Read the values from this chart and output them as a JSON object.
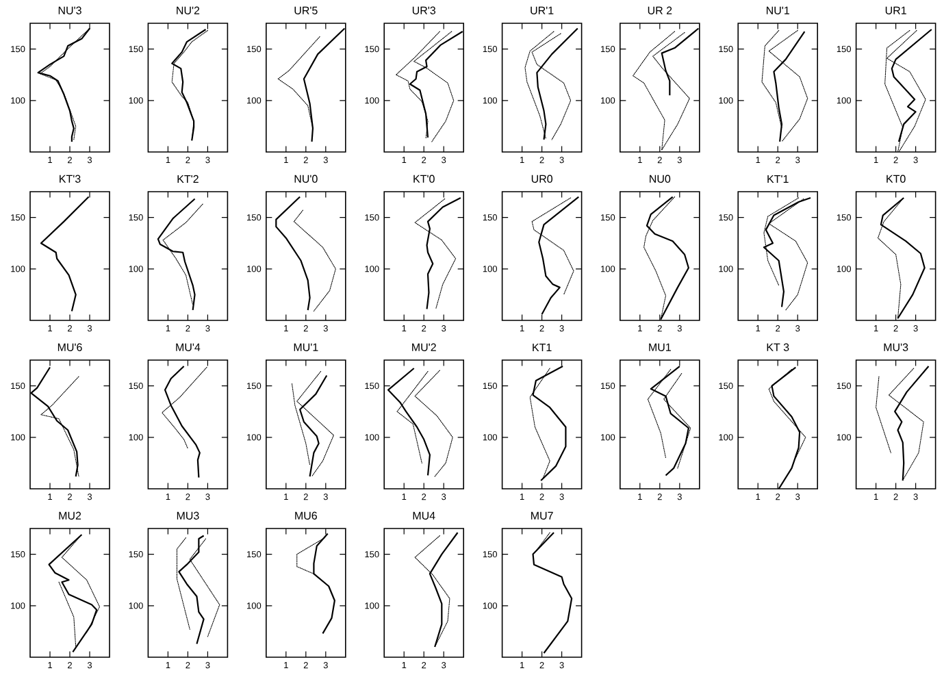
{
  "chart_data": [
    {
      "type": "line",
      "title": "NU'3",
      "xlim": [
        0,
        4
      ],
      "ylim": [
        50,
        175
      ],
      "xticks": [
        1,
        2,
        3
      ],
      "yticks": [
        100,
        150
      ],
      "series": [
        {
          "color": "#000000",
          "line_style": "solid",
          "x": [
            3.0,
            2.6,
            1.9,
            1.7,
            1.0,
            0.4,
            1.0,
            1.4,
            1.7,
            2.0,
            2.1,
            2.2,
            2.1,
            2.1
          ],
          "values": [
            170,
            160,
            153,
            143,
            135,
            127,
            124,
            119,
            106,
            90,
            80,
            73,
            65,
            60
          ]
        },
        {
          "color": "#000000",
          "line_style": "dotted",
          "x": [
            3.0,
            2.0,
            1.0,
            0.5,
            1.3,
            1.7,
            2.3,
            2.2
          ],
          "values": [
            170,
            152,
            133,
            126,
            120,
            107,
            75,
            62
          ]
        }
      ]
    },
    {
      "type": "line",
      "title": "NU'2",
      "xlim": [
        0,
        4
      ],
      "ylim": [
        50,
        175
      ],
      "xticks": [
        1,
        2,
        3
      ],
      "yticks": [
        100,
        150
      ],
      "series": [
        {
          "color": "#000000",
          "line_style": "solid",
          "x": [
            2.9,
            1.95,
            1.7,
            1.2,
            1.65,
            1.75,
            1.7,
            1.95,
            2.3,
            2.3,
            2.2
          ],
          "values": [
            169,
            157,
            147,
            136,
            131,
            118,
            108,
            98,
            80,
            74,
            61
          ]
        },
        {
          "color": "#000000",
          "line_style": "dotted",
          "x": [
            3.0,
            2.2,
            1.8,
            1.3,
            1.2,
            1.7,
            2.0,
            2.3,
            2.2
          ],
          "values": [
            168,
            157,
            147,
            136,
            118,
            104,
            98,
            80,
            61
          ]
        }
      ]
    },
    {
      "type": "line",
      "title": "UR'5",
      "xlim": [
        0,
        4
      ],
      "ylim": [
        50,
        175
      ],
      "xticks": [
        1,
        2,
        3
      ],
      "yticks": [
        100,
        150
      ],
      "series": [
        {
          "color": "#000000",
          "line_style": "solid",
          "x": [
            3.95,
            2.6,
            1.9,
            2.2,
            2.35,
            2.3
          ],
          "values": [
            170,
            145,
            121,
            97,
            73,
            60
          ]
        },
        {
          "color": "#000000",
          "line_style": "dotted",
          "x": [
            2.7,
            1.15,
            0.6,
            1.35,
            2.1,
            2.35
          ],
          "values": [
            162,
            129,
            121,
            111,
            95,
            73
          ]
        }
      ]
    },
    {
      "type": "line",
      "title": "UR'3",
      "xlim": [
        0,
        4
      ],
      "ylim": [
        50,
        175
      ],
      "xticks": [
        1,
        2,
        3
      ],
      "yticks": [
        100,
        150
      ],
      "series": [
        {
          "color": "#000000",
          "line_style": "solid",
          "x": [
            3.95,
            2.85,
            2.1,
            2.15,
            1.65,
            1.6,
            1.3,
            1.8,
            2.1,
            2.2
          ],
          "values": [
            167,
            154,
            139,
            133,
            128,
            121,
            116,
            110,
            87,
            64
          ]
        },
        {
          "color": "#000000",
          "line_style": "dotted",
          "x": [
            2.8,
            1.55,
            0.6,
            1.2,
            1.3,
            1.9,
            2.2,
            2.1
          ],
          "values": [
            167,
            142,
            125,
            119,
            111,
            99,
            80,
            63
          ]
        },
        {
          "color": "#000000",
          "line_style": "dotted",
          "x": [
            3.4,
            1.5,
            2.1,
            3.2,
            3.5,
            3.1,
            2.4
          ],
          "values": [
            167,
            138,
            132,
            117,
            100,
            80,
            60
          ]
        }
      ]
    },
    {
      "type": "line",
      "title": "UR'1",
      "xlim": [
        0,
        4
      ],
      "ylim": [
        50,
        175
      ],
      "xticks": [
        1,
        2,
        3
      ],
      "yticks": [
        100,
        150
      ],
      "series": [
        {
          "color": "#000000",
          "line_style": "solid",
          "x": [
            3.8,
            2.5,
            1.75,
            1.8,
            2.1,
            2.2,
            2.1
          ],
          "values": [
            170,
            145,
            127,
            113,
            90,
            77,
            62
          ]
        },
        {
          "color": "#000000",
          "line_style": "dotted",
          "x": [
            2.95,
            1.5,
            1.75,
            3.1,
            3.45,
            2.95,
            2.5
          ],
          "values": [
            165,
            147,
            135,
            117,
            100,
            77,
            62
          ]
        },
        {
          "color": "#000000",
          "line_style": "dotted",
          "x": [
            2.6,
            1.4,
            1.15,
            1.25,
            1.9,
            2.2
          ],
          "values": [
            167,
            148,
            132,
            118,
            85,
            63
          ]
        }
      ]
    },
    {
      "type": "line",
      "title": "UR 2",
      "xlim": [
        0,
        4
      ],
      "ylim": [
        50,
        175
      ],
      "xticks": [
        1,
        2,
        3
      ],
      "yticks": [
        100,
        150
      ],
      "series": [
        {
          "color": "#000000",
          "line_style": "solid",
          "x": [
            3.95,
            2.75,
            2.1,
            2.3,
            2.5,
            2.5
          ],
          "values": [
            170,
            151,
            146,
            129,
            119,
            105
          ]
        },
        {
          "color": "#000000",
          "line_style": "dotted",
          "x": [
            3.25,
            1.65,
            2.1,
            3.5,
            2.9,
            2.1
          ],
          "values": [
            166,
            143,
            132,
            102,
            77,
            52
          ]
        },
        {
          "color": "#000000",
          "line_style": "dotted",
          "x": [
            2.75,
            1.5,
            0.65,
            1.2,
            2.25,
            2.1
          ],
          "values": [
            167,
            147,
            124,
            117,
            81,
            52
          ]
        }
      ]
    },
    {
      "type": "line",
      "title": "NU'1",
      "xlim": [
        0,
        4
      ],
      "ylim": [
        50,
        175
      ],
      "xticks": [
        1,
        2,
        3
      ],
      "yticks": [
        100,
        150
      ],
      "series": [
        {
          "color": "#000000",
          "line_style": "solid",
          "x": [
            3.35,
            2.4,
            1.8,
            1.9,
            2.05,
            2.2,
            2.1
          ],
          "values": [
            167,
            140,
            128,
            117,
            93,
            77,
            60
          ]
        },
        {
          "color": "#000000",
          "line_style": "dotted",
          "x": [
            3.0,
            1.55,
            3.1,
            3.5,
            3.1,
            2.2
          ],
          "values": [
            168,
            148,
            123,
            102,
            82,
            60
          ]
        },
        {
          "color": "#000000",
          "line_style": "dotted",
          "x": [
            2.05,
            1.35,
            1.2,
            1.9,
            2.2
          ],
          "values": [
            168,
            153,
            118,
            98,
            73
          ]
        }
      ]
    },
    {
      "type": "line",
      "title": "UR1",
      "xlim": [
        0,
        4
      ],
      "ylim": [
        50,
        175
      ],
      "xticks": [
        1,
        2,
        3
      ],
      "yticks": [
        100,
        150
      ],
      "series": [
        {
          "color": "#000000",
          "line_style": "solid",
          "x": [
            3.8,
            2.0,
            1.8,
            1.9,
            2.95,
            2.6,
            3.0,
            2.4,
            2.15
          ],
          "values": [
            169,
            140,
            131,
            123,
            101,
            94,
            89,
            77,
            60
          ]
        },
        {
          "color": "#000000",
          "line_style": "dotted",
          "x": [
            3.05,
            1.55,
            2.7,
            3.5,
            2.95,
            2.15
          ],
          "values": [
            168,
            141,
            128,
            101,
            75,
            50
          ]
        },
        {
          "color": "#000000",
          "line_style": "dotted",
          "x": [
            2.7,
            1.55,
            1.45,
            2.35,
            2.1
          ],
          "values": [
            168,
            151,
            116,
            74,
            50
          ]
        }
      ]
    },
    {
      "type": "line",
      "title": "KT'3",
      "xlim": [
        0,
        4
      ],
      "ylim": [
        50,
        175
      ],
      "xticks": [
        1,
        2,
        3
      ],
      "yticks": [
        100,
        150
      ],
      "series": [
        {
          "color": "#000000",
          "line_style": "solid",
          "x": [
            2.95,
            1.7,
            0.55,
            1.3,
            1.35,
            1.95,
            2.3,
            2.1
          ],
          "values": [
            170,
            146,
            125,
            116,
            110,
            94,
            75,
            59
          ]
        }
      ]
    },
    {
      "type": "line",
      "title": "KT'2",
      "xlim": [
        0,
        4
      ],
      "ylim": [
        50,
        175
      ],
      "xticks": [
        1,
        2,
        3
      ],
      "yticks": [
        100,
        150
      ],
      "series": [
        {
          "color": "#000000",
          "line_style": "solid",
          "x": [
            2.35,
            1.25,
            0.5,
            0.6,
            1.25,
            1.75,
            1.85,
            2.25,
            2.35,
            2.25
          ],
          "values": [
            168,
            149,
            129,
            124,
            117,
            116,
            107,
            84,
            75,
            60
          ]
        },
        {
          "color": "#000000",
          "line_style": "dotted",
          "x": [
            2.75,
            1.9,
            0.75,
            1.4,
            1.9,
            2.25
          ],
          "values": [
            163,
            145,
            128,
            110,
            94,
            65
          ]
        }
      ]
    },
    {
      "type": "line",
      "title": "NU'0",
      "xlim": [
        0,
        4
      ],
      "ylim": [
        50,
        175
      ],
      "xticks": [
        1,
        2,
        3
      ],
      "yticks": [
        100,
        150
      ],
      "series": [
        {
          "color": "#000000",
          "line_style": "solid",
          "x": [
            1.7,
            0.5,
            0.5,
            1.0,
            1.75,
            2.1,
            2.2,
            2.1
          ],
          "values": [
            170,
            148,
            141,
            130,
            108,
            89,
            72,
            60
          ]
        },
        {
          "color": "#000000",
          "line_style": "dotted",
          "x": [
            1.85,
            1.4,
            2.85,
            3.5,
            3.2,
            2.4
          ],
          "values": [
            157,
            146,
            121,
            100,
            79,
            59
          ]
        }
      ]
    },
    {
      "type": "line",
      "title": "KT'0",
      "xlim": [
        0,
        4
      ],
      "ylim": [
        50,
        175
      ],
      "xticks": [
        1,
        2,
        3
      ],
      "yticks": [
        100,
        150
      ],
      "series": [
        {
          "color": "#000000",
          "line_style": "solid",
          "x": [
            3.85,
            2.95,
            2.2,
            2.3,
            2.15,
            2.2,
            2.45,
            2.2,
            2.25,
            2.15
          ],
          "values": [
            169,
            160,
            146,
            139,
            123,
            116,
            105,
            95,
            77,
            61
          ]
        },
        {
          "color": "#000000",
          "line_style": "dotted",
          "x": [
            3.05,
            1.55,
            2.9,
            3.6,
            2.95,
            2.6
          ],
          "values": [
            168,
            145,
            128,
            110,
            85,
            61
          ]
        }
      ]
    },
    {
      "type": "line",
      "title": "UR0",
      "xlim": [
        0,
        4
      ],
      "ylim": [
        50,
        175
      ],
      "xticks": [
        1,
        2,
        3
      ],
      "yticks": [
        100,
        150
      ],
      "series": [
        {
          "color": "#000000",
          "line_style": "solid",
          "x": [
            3.85,
            2.1,
            1.85,
            2.05,
            2.2,
            2.55,
            2.9,
            2.45,
            2.0
          ],
          "values": [
            170,
            143,
            126,
            110,
            93,
            85,
            82,
            72,
            56
          ]
        },
        {
          "color": "#000000",
          "line_style": "dotted",
          "x": [
            3.45,
            1.5,
            1.6,
            3.1,
            3.6,
            3.1
          ],
          "values": [
            169,
            146,
            138,
            118,
            98,
            75
          ]
        }
      ]
    },
    {
      "type": "line",
      "title": "NU0",
      "xlim": [
        0,
        4
      ],
      "ylim": [
        50,
        175
      ],
      "xticks": [
        1,
        2,
        3
      ],
      "yticks": [
        100,
        150
      ],
      "series": [
        {
          "color": "#000000",
          "line_style": "solid",
          "x": [
            2.65,
            1.55,
            1.35,
            1.75,
            2.65,
            3.25,
            3.45,
            2.9,
            2.05
          ],
          "values": [
            170,
            153,
            142,
            134,
            127,
            114,
            101,
            82,
            51
          ]
        },
        {
          "color": "#000000",
          "line_style": "dotted",
          "x": [
            2.75,
            1.65,
            1.3,
            1.2,
            1.8,
            2.3,
            2.05
          ],
          "values": [
            170,
            147,
            132,
            121,
            98,
            74,
            51
          ]
        }
      ]
    },
    {
      "type": "line",
      "title": "KT'1",
      "xlim": [
        0,
        4
      ],
      "ylim": [
        50,
        175
      ],
      "xticks": [
        1,
        2,
        3
      ],
      "yticks": [
        100,
        150
      ],
      "series": [
        {
          "color": "#000000",
          "line_style": "solid",
          "x": [
            3.65,
            3.05,
            1.8,
            1.4,
            1.75,
            1.3,
            2.05,
            2.3,
            2.2
          ],
          "values": [
            169,
            165,
            152,
            138,
            125,
            121,
            108,
            78,
            63
          ]
        },
        {
          "color": "#000000",
          "line_style": "dotted",
          "x": [
            3.3,
            1.55,
            2.9,
            3.5,
            3.0,
            2.4
          ],
          "values": [
            168,
            144,
            127,
            106,
            75,
            60
          ]
        },
        {
          "color": "#000000",
          "line_style": "dotted",
          "x": [
            3.05,
            1.5,
            1.3,
            1.5,
            2.05
          ],
          "values": [
            169,
            151,
            135,
            108,
            84
          ]
        }
      ]
    },
    {
      "type": "line",
      "title": "KT0",
      "xlim": [
        0,
        4
      ],
      "ylim": [
        50,
        175
      ],
      "xticks": [
        1,
        2,
        3
      ],
      "yticks": [
        100,
        150
      ],
      "series": [
        {
          "color": "#000000",
          "line_style": "solid",
          "x": [
            2.4,
            1.35,
            1.25,
            2.5,
            3.25,
            3.45,
            2.85,
            2.1
          ],
          "values": [
            169,
            152,
            143,
            127,
            115,
            101,
            75,
            52
          ]
        },
        {
          "color": "#000000",
          "line_style": "dotted",
          "x": [
            2.35,
            1.4,
            1.1,
            2.0,
            2.25,
            2.1
          ],
          "values": [
            168,
            146,
            130,
            114,
            85,
            52
          ]
        }
      ]
    },
    {
      "type": "line",
      "title": "MU'6",
      "xlim": [
        0,
        4
      ],
      "ylim": [
        50,
        175
      ],
      "xticks": [
        1,
        2,
        3
      ],
      "yticks": [
        100,
        150
      ],
      "series": [
        {
          "color": "#000000",
          "line_style": "solid",
          "x": [
            1.0,
            0.35,
            0.05,
            0.9,
            1.35,
            1.9,
            2.35,
            2.4,
            2.3
          ],
          "values": [
            168,
            148,
            143,
            130,
            116,
            107,
            86,
            73,
            62
          ]
        },
        {
          "color": "#000000",
          "line_style": "dotted",
          "x": [
            2.45,
            1.1,
            0.55,
            1.45,
            2.2,
            2.45
          ],
          "values": [
            159,
            131,
            122,
            118,
            88,
            62
          ]
        }
      ]
    },
    {
      "type": "line",
      "title": "MU'4",
      "xlim": [
        0,
        4
      ],
      "ylim": [
        50,
        175
      ],
      "xticks": [
        1,
        2,
        3
      ],
      "yticks": [
        100,
        150
      ],
      "series": [
        {
          "color": "#000000",
          "line_style": "solid",
          "x": [
            1.8,
            1.15,
            0.85,
            1.15,
            1.7,
            2.4,
            2.6,
            2.5,
            2.55
          ],
          "values": [
            169,
            157,
            146,
            131,
            111,
            93,
            85,
            78,
            61
          ]
        },
        {
          "color": "#000000",
          "line_style": "dotted",
          "x": [
            2.95,
            1.6,
            0.7,
            1.35,
            1.8,
            2.0
          ],
          "values": [
            168,
            139,
            124,
            109,
            98,
            89
          ]
        }
      ]
    },
    {
      "type": "line",
      "title": "MU'1",
      "xlim": [
        0,
        4
      ],
      "ylim": [
        50,
        175
      ],
      "xticks": [
        1,
        2,
        3
      ],
      "yticks": [
        100,
        150
      ],
      "series": [
        {
          "color": "#000000",
          "line_style": "solid",
          "x": [
            3.05,
            2.5,
            1.7,
            1.9,
            2.55,
            2.65,
            2.4,
            2.2
          ],
          "values": [
            160,
            142,
            127,
            115,
            101,
            94,
            85,
            62
          ]
        },
        {
          "color": "#000000",
          "line_style": "dotted",
          "x": [
            2.75,
            1.55,
            3.4,
            2.85,
            2.3
          ],
          "values": [
            164,
            135,
            102,
            77,
            62
          ]
        },
        {
          "color": "#000000",
          "line_style": "dotted",
          "x": [
            1.3,
            1.45,
            2.0,
            2.2
          ],
          "values": [
            152,
            131,
            94,
            73
          ]
        }
      ]
    },
    {
      "type": "line",
      "title": "MU'2",
      "xlim": [
        0,
        4
      ],
      "ylim": [
        50,
        175
      ],
      "xticks": [
        1,
        2,
        3
      ],
      "yticks": [
        100,
        150
      ],
      "series": [
        {
          "color": "#000000",
          "line_style": "solid",
          "x": [
            1.5,
            0.2,
            0.8,
            1.1,
            1.65,
            2.0,
            2.3,
            2.2
          ],
          "values": [
            167,
            146,
            134,
            125,
            110,
            98,
            83,
            63
          ]
        },
        {
          "color": "#000000",
          "line_style": "dotted",
          "x": [
            2.8,
            1.55,
            2.65,
            3.45,
            3.1,
            2.55
          ],
          "values": [
            165,
            140,
            121,
            100,
            75,
            62
          ]
        },
        {
          "color": "#000000",
          "line_style": "dotted",
          "x": [
            2.2,
            0.65,
            1.45,
            1.9
          ],
          "values": [
            164,
            125,
            113,
            75
          ]
        }
      ]
    },
    {
      "type": "line",
      "title": "KT1",
      "xlim": [
        0,
        4
      ],
      "ylim": [
        50,
        175
      ],
      "xticks": [
        1,
        2,
        3
      ],
      "yticks": [
        100,
        150
      ],
      "series": [
        {
          "color": "#000000",
          "line_style": "solid",
          "x": [
            3.05,
            1.7,
            1.55,
            2.4,
            3.2,
            3.2,
            2.7,
            1.95
          ],
          "values": [
            169,
            155,
            141,
            129,
            110,
            91,
            72,
            58
          ]
        },
        {
          "color": "#000000",
          "line_style": "dotted",
          "x": [
            2.4,
            1.4,
            1.65,
            2.4,
            2.05
          ],
          "values": [
            167,
            139,
            110,
            77,
            60
          ]
        }
      ]
    },
    {
      "type": "line",
      "title": "MU1",
      "xlim": [
        0,
        4
      ],
      "ylim": [
        50,
        175
      ],
      "xticks": [
        1,
        2,
        3
      ],
      "yticks": [
        100,
        150
      ],
      "series": [
        {
          "color": "#000000",
          "line_style": "solid",
          "x": [
            3.0,
            1.55,
            2.3,
            2.55,
            3.45,
            3.3,
            2.7,
            2.3
          ],
          "values": [
            169,
            147,
            140,
            123,
            109,
            94,
            70,
            63
          ]
        },
        {
          "color": "#000000",
          "line_style": "dotted",
          "x": [
            2.55,
            1.4,
            2.05,
            2.3
          ],
          "values": [
            166,
            137,
            104,
            80
          ]
        },
        {
          "color": "#000000",
          "line_style": "dotted",
          "x": [
            3.1,
            2.2,
            3.55,
            2.9
          ],
          "values": [
            162,
            137,
            109,
            70
          ]
        }
      ]
    },
    {
      "type": "line",
      "title": "KT 3",
      "xlim": [
        0,
        4
      ],
      "ylim": [
        50,
        175
      ],
      "xticks": [
        1,
        2,
        3
      ],
      "yticks": [
        100,
        150
      ],
      "series": [
        {
          "color": "#000000",
          "line_style": "solid",
          "x": [
            2.9,
            1.7,
            1.8,
            2.7,
            3.1,
            3.05,
            2.7,
            2.05
          ],
          "values": [
            168,
            150,
            140,
            120,
            105,
            90,
            70,
            50
          ]
        },
        {
          "color": "#000000",
          "line_style": "dotted",
          "x": [
            2.7,
            1.55,
            1.8,
            3.4,
            2.9
          ],
          "values": [
            166,
            147,
            135,
            100,
            80
          ]
        }
      ]
    },
    {
      "type": "line",
      "title": "MU'3",
      "xlim": [
        0,
        4
      ],
      "ylim": [
        50,
        175
      ],
      "xticks": [
        1,
        2,
        3
      ],
      "yticks": [
        100,
        150
      ],
      "series": [
        {
          "color": "#000000",
          "line_style": "solid",
          "x": [
            3.65,
            2.55,
            1.95,
            2.3,
            2.1,
            2.35,
            2.4,
            2.35
          ],
          "values": [
            169,
            144,
            125,
            115,
            107,
            95,
            75,
            58
          ]
        },
        {
          "color": "#000000",
          "line_style": "dotted",
          "x": [
            2.9,
            1.65,
            3.4,
            3.15,
            2.4
          ],
          "values": [
            167,
            141,
            115,
            85,
            60
          ]
        },
        {
          "color": "#000000",
          "line_style": "dotted",
          "x": [
            1.15,
            1.0,
            1.75
          ],
          "values": [
            159,
            129,
            85
          ]
        }
      ]
    },
    {
      "type": "line",
      "title": "MU2",
      "xlim": [
        0,
        4
      ],
      "ylim": [
        50,
        175
      ],
      "xticks": [
        1,
        2,
        3
      ],
      "yticks": [
        100,
        150
      ],
      "series": [
        {
          "color": "#000000",
          "line_style": "solid",
          "x": [
            2.6,
            0.95,
            1.25,
            1.95,
            1.6,
            1.95,
            3.1,
            3.35,
            3.1,
            2.15
          ],
          "values": [
            169,
            140,
            132,
            125,
            123,
            111,
            101,
            96,
            82,
            55
          ]
        },
        {
          "color": "#000000",
          "line_style": "dotted",
          "x": [
            2.5,
            1.6,
            2.85,
            3.5,
            2.85
          ],
          "values": [
            167,
            147,
            125,
            99,
            74
          ]
        },
        {
          "color": "#000000",
          "line_style": "dotted",
          "x": [
            1.45,
            2.2,
            2.3
          ],
          "values": [
            123,
            89,
            60
          ]
        }
      ]
    },
    {
      "type": "line",
      "title": "MU3",
      "xlim": [
        0,
        4
      ],
      "ylim": [
        50,
        175
      ],
      "xticks": [
        1,
        2,
        3
      ],
      "yticks": [
        100,
        150
      ],
      "series": [
        {
          "color": "#000000",
          "line_style": "solid",
          "x": [
            2.8,
            2.55,
            2.55,
            1.95,
            1.55,
            1.95,
            2.45,
            2.55,
            2.8,
            2.45
          ],
          "values": [
            168,
            165,
            152,
            140,
            133,
            121,
            109,
            94,
            87,
            63
          ]
        },
        {
          "color": "#000000",
          "line_style": "dotted",
          "x": [
            2.9,
            2.1,
            3.6,
            3.0
          ],
          "values": [
            165,
            145,
            101,
            70
          ]
        },
        {
          "color": "#000000",
          "line_style": "dotted",
          "x": [
            1.9,
            1.45,
            1.45,
            2.1
          ],
          "values": [
            166,
            155,
            126,
            77
          ]
        }
      ]
    },
    {
      "type": "line",
      "title": "MU6",
      "xlim": [
        0,
        4
      ],
      "ylim": [
        50,
        175
      ],
      "xticks": [
        1,
        2,
        3
      ],
      "yticks": [
        100,
        150
      ],
      "series": [
        {
          "color": "#000000",
          "line_style": "solid",
          "x": [
            3.1,
            2.55,
            2.4,
            2.4,
            3.15,
            3.45,
            3.3,
            2.85
          ],
          "values": [
            170,
            158,
            141,
            131,
            119,
            105,
            88,
            73
          ]
        },
        {
          "color": "#000000",
          "line_style": "dotted",
          "x": [
            2.95,
            1.55,
            1.55,
            2.4
          ],
          "values": [
            166,
            150,
            138,
            131
          ]
        }
      ]
    },
    {
      "type": "line",
      "title": "MU4",
      "xlim": [
        0,
        4
      ],
      "ylim": [
        50,
        175
      ],
      "xticks": [
        1,
        2,
        3
      ],
      "yticks": [
        100,
        150
      ],
      "series": [
        {
          "color": "#000000",
          "line_style": "solid",
          "x": [
            3.7,
            2.9,
            2.3,
            2.6,
            2.9,
            2.9,
            2.55
          ],
          "values": [
            171,
            150,
            131,
            117,
            102,
            82,
            60
          ]
        },
        {
          "color": "#000000",
          "line_style": "dotted",
          "x": [
            2.8,
            1.55,
            2.45,
            3.3,
            3.2,
            2.6
          ],
          "values": [
            168,
            147,
            130,
            107,
            85,
            62
          ]
        }
      ]
    },
    {
      "type": "line",
      "title": "MU7",
      "xlim": [
        0,
        4
      ],
      "ylim": [
        50,
        175
      ],
      "xticks": [
        1,
        2,
        3
      ],
      "yticks": [
        100,
        150
      ],
      "series": [
        {
          "color": "#000000",
          "line_style": "solid",
          "x": [
            2.6,
            1.55,
            1.6,
            3.0,
            3.1,
            3.5,
            3.3,
            2.1
          ],
          "values": [
            171,
            150,
            140,
            128,
            121,
            107,
            85,
            54
          ]
        },
        {
          "color": "#000000",
          "line_style": "dotted",
          "x": [
            2.4,
            1.7
          ],
          "values": [
            171,
            153
          ]
        }
      ]
    }
  ]
}
